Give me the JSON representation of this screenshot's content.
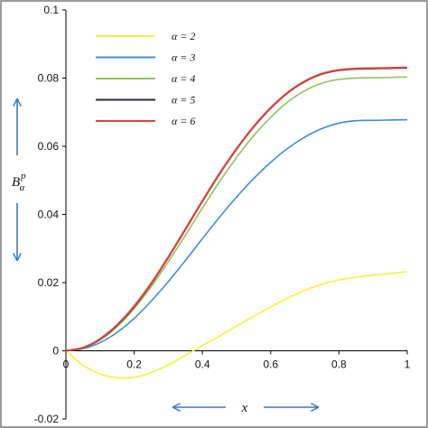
{
  "chart_data": {
    "type": "line",
    "xlabel": "x",
    "ylabel": "B",
    "ylabel_superscript": "p",
    "ylabel_subscript": "α",
    "xlim": [
      0,
      1
    ],
    "ylim": [
      -0.02,
      0.1
    ],
    "x_ticks": [
      "0",
      "0.2",
      "0.4",
      "0.6",
      "0.8",
      "1"
    ],
    "y_ticks": [
      "-0.02",
      "0",
      "0.02",
      "0.04",
      "0.06",
      "0.08",
      "0.1"
    ],
    "grid": false,
    "legend_position": "top-left",
    "x": [
      0,
      0.05,
      0.1,
      0.15,
      0.2,
      0.25,
      0.3,
      0.35,
      0.4,
      0.45,
      0.5,
      0.55,
      0.6,
      0.65,
      0.7,
      0.75,
      0.8,
      0.85,
      0.9,
      0.95,
      1
    ],
    "series": [
      {
        "name": "α = 2",
        "color": "#f5f03c",
        "values": [
          0,
          -0.0042,
          -0.0068,
          -0.0079,
          -0.0078,
          -0.0064,
          -0.0041,
          -0.0013,
          0.0015,
          0.0043,
          0.0072,
          0.0101,
          0.0129,
          0.0155,
          0.0177,
          0.0195,
          0.0208,
          0.0216,
          0.0222,
          0.0227,
          0.0232
        ]
      },
      {
        "name": "α = 3",
        "color": "#3d8fd1",
        "values": [
          0,
          0.0006,
          0.0024,
          0.0054,
          0.0095,
          0.0146,
          0.0203,
          0.0265,
          0.0329,
          0.0392,
          0.0451,
          0.0505,
          0.0553,
          0.0594,
          0.0627,
          0.0652,
          0.0668,
          0.0675,
          0.0676,
          0.0677,
          0.0678
        ]
      },
      {
        "name": "α = 4",
        "color": "#93c25a",
        "values": [
          0,
          0.0008,
          0.0032,
          0.0071,
          0.0124,
          0.0188,
          0.0261,
          0.0339,
          0.0419,
          0.0496,
          0.0567,
          0.0631,
          0.0685,
          0.073,
          0.0763,
          0.0785,
          0.0796,
          0.08,
          0.0801,
          0.0802,
          0.0803
        ]
      },
      {
        "name": "α = 5",
        "color": "#2a2a3a",
        "values": [
          0,
          0.0009,
          0.0034,
          0.0075,
          0.013,
          0.0197,
          0.0274,
          0.0356,
          0.0439,
          0.0519,
          0.0592,
          0.0657,
          0.0712,
          0.0757,
          0.079,
          0.0812,
          0.0823,
          0.0827,
          0.0828,
          0.0829,
          0.083
        ]
      },
      {
        "name": "α = 6",
        "color": "#e0403a",
        "values": [
          0,
          0.0009,
          0.0035,
          0.0076,
          0.0131,
          0.0198,
          0.0275,
          0.0357,
          0.044,
          0.052,
          0.0593,
          0.0658,
          0.0713,
          0.0758,
          0.0791,
          0.0813,
          0.0824,
          0.0828,
          0.0829,
          0.083,
          0.0831
        ]
      }
    ]
  },
  "colors": {
    "axis": "#000000",
    "frame": "#7a7a7a",
    "arrow": "#3a78b8"
  }
}
